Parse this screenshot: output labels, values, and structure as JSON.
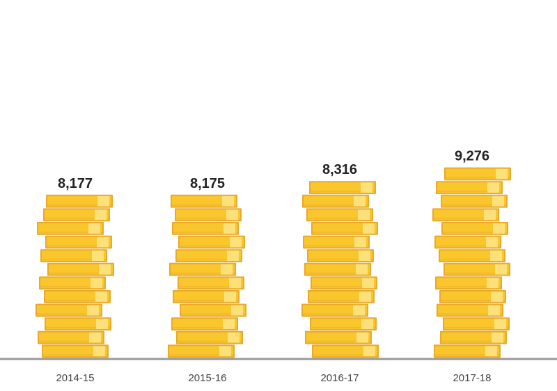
{
  "chart_data": {
    "type": "bar",
    "categories": [
      "2014-15",
      "2015-16",
      "2016-17",
      "2017-18"
    ],
    "values": [
      8177,
      8175,
      8316,
      9276
    ],
    "value_labels": [
      "8,177",
      "8,175",
      "8,316",
      "9,276"
    ],
    "title": "",
    "xlabel": "",
    "ylabel": "",
    "grid": false,
    "legend": "none",
    "colors": {
      "coin_face": "#F9C72C",
      "coin_edge": "#E9A92A",
      "coin_highlight": "#FCE07A",
      "coin_shadow": "#F2B830",
      "baseline": "#999999"
    }
  }
}
